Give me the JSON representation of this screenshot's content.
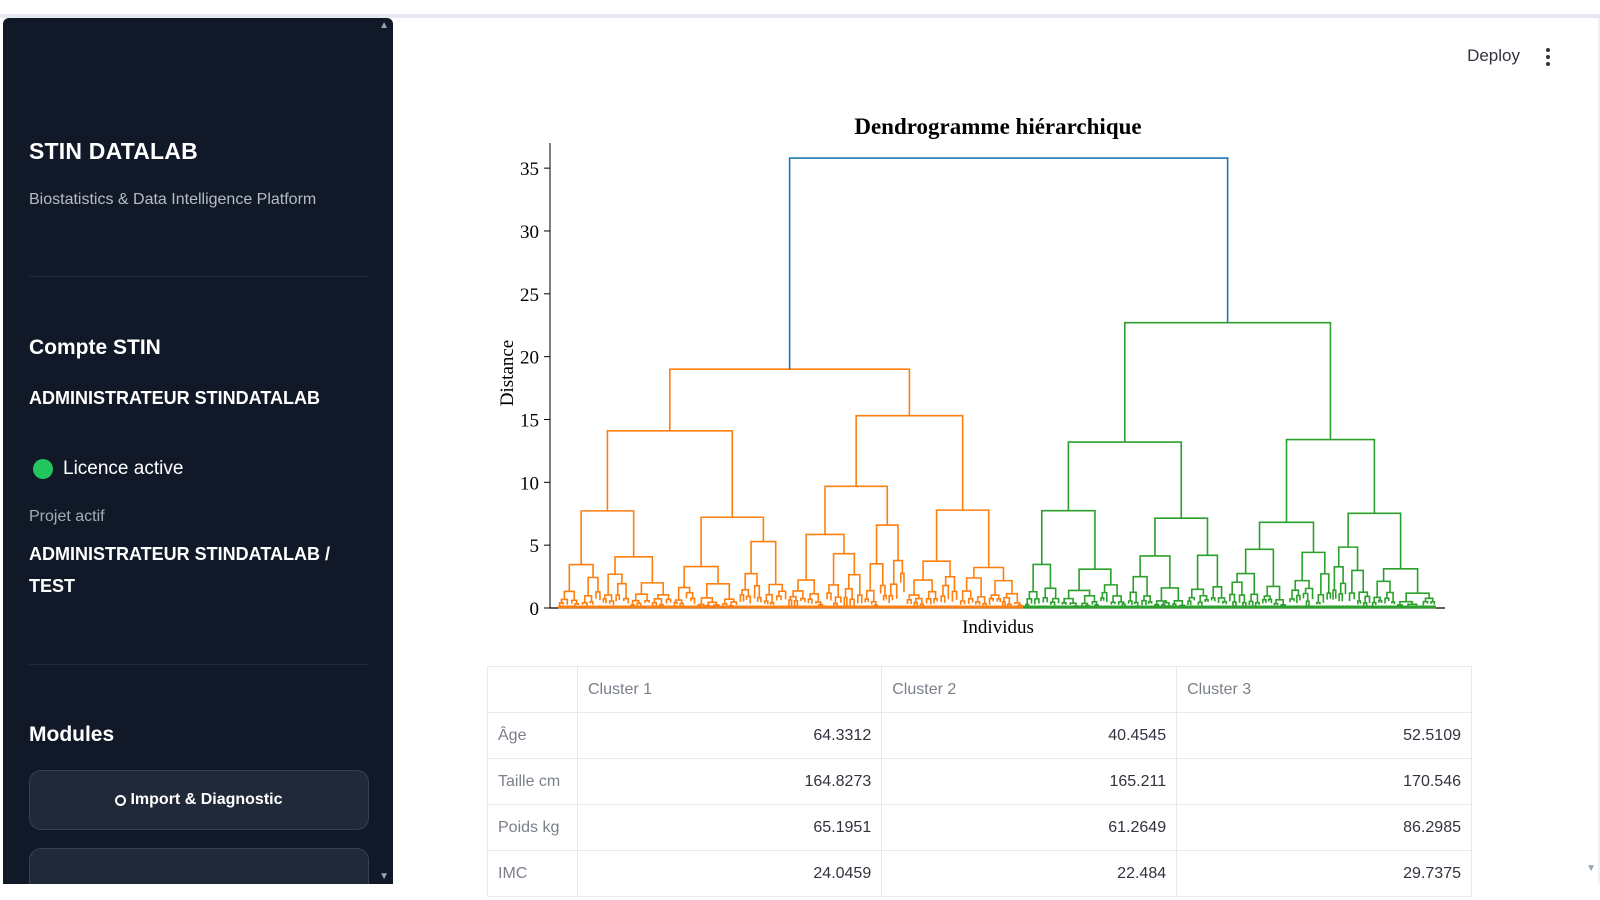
{
  "sidebar": {
    "brand_title": "STIN DATALAB",
    "brand_subtitle": "Biostatistics & Data Intelligence Platform",
    "account_heading": "Compte STIN",
    "account_name": "ADMINISTRATEUR STINDATALAB",
    "licence_label": "Licence active",
    "licence_color": "#22c55e",
    "project_label": "Projet actif",
    "project_name": "ADMINISTRATEUR STINDATALAB / TEST",
    "modules_heading": "Modules",
    "modules": [
      {
        "label": "Import & Diagnostic",
        "icon": "circle-icon"
      }
    ]
  },
  "header": {
    "deploy_label": "Deploy",
    "menu_icon": "kebab-menu-icon"
  },
  "chart_data": {
    "type": "dendrogram",
    "title": "Dendrogramme hiérarchique",
    "xlabel": "Individus",
    "ylabel": "Distance",
    "ylim": [
      0,
      37
    ],
    "yticks": [
      0,
      5,
      10,
      15,
      20,
      25,
      30,
      35
    ],
    "grid": false,
    "colors": {
      "cluster_1": "#ff7f0e",
      "cluster_2": "#2ca02c",
      "root": "#1f77b4"
    },
    "top_merges": [
      {
        "height": 35.8,
        "left_cluster": "orange",
        "right_cluster": "green",
        "color": "#1f77b4"
      },
      {
        "height": 19.0,
        "cluster": "orange"
      },
      {
        "height": 22.7,
        "cluster": "green"
      },
      {
        "height": 14.1,
        "cluster": "orange"
      },
      {
        "height": 15.3,
        "cluster": "orange"
      },
      {
        "height": 13.2,
        "cluster": "green"
      },
      {
        "height": 13.4,
        "cluster": "green"
      }
    ]
  },
  "table": {
    "columns": [
      "",
      "Cluster 1",
      "Cluster 2",
      "Cluster 3"
    ],
    "rows": [
      {
        "label": "Âge",
        "values": [
          "64.3312",
          "40.4545",
          "52.5109"
        ]
      },
      {
        "label": "Taille cm",
        "values": [
          "164.8273",
          "165.211",
          "170.546"
        ]
      },
      {
        "label": "Poids kg",
        "values": [
          "65.1951",
          "61.2649",
          "86.2985"
        ]
      },
      {
        "label": "IMC",
        "values": [
          "24.0459",
          "22.484",
          "29.7375"
        ]
      }
    ]
  }
}
